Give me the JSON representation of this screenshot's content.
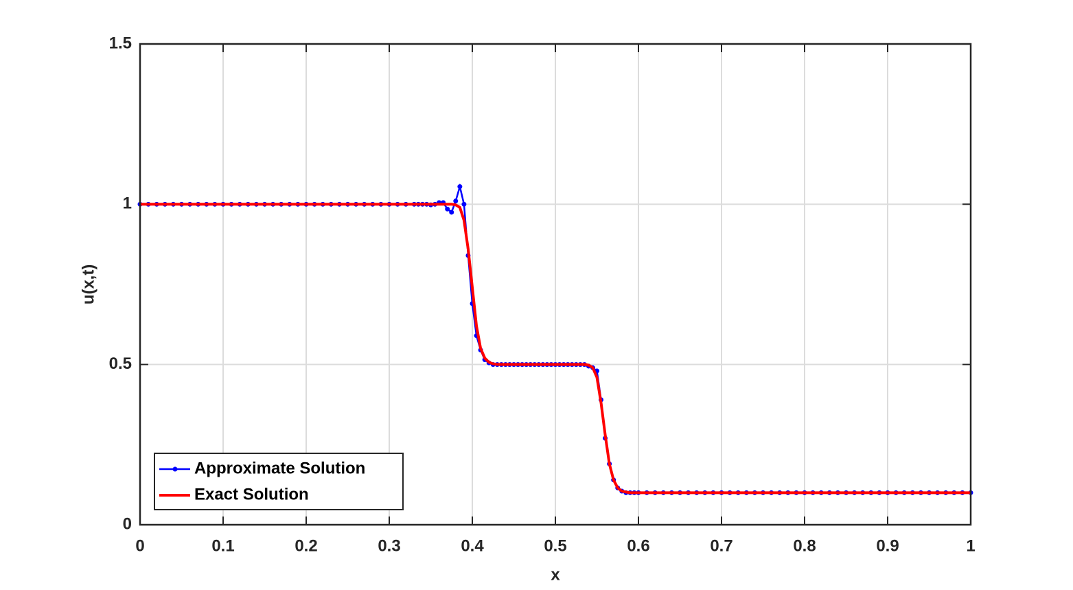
{
  "chart_data": {
    "type": "line",
    "x_label": "x",
    "y_label": "u(x,t)",
    "x": [
      0,
      0.01,
      0.02,
      0.03,
      0.04,
      0.05,
      0.06,
      0.07,
      0.08,
      0.09,
      0.1,
      0.11,
      0.12,
      0.13,
      0.14,
      0.15,
      0.16,
      0.17,
      0.18,
      0.19,
      0.2,
      0.21,
      0.22,
      0.23,
      0.24,
      0.25,
      0.26,
      0.27,
      0.28,
      0.29,
      0.3,
      0.31,
      0.32,
      0.33,
      0.335,
      0.34,
      0.345,
      0.35,
      0.355,
      0.36,
      0.365,
      0.37,
      0.375,
      0.38,
      0.385,
      0.39,
      0.395,
      0.4,
      0.405,
      0.41,
      0.415,
      0.42,
      0.425,
      0.43,
      0.435,
      0.44,
      0.445,
      0.45,
      0.455,
      0.46,
      0.465,
      0.47,
      0.475,
      0.48,
      0.485,
      0.49,
      0.495,
      0.5,
      0.505,
      0.51,
      0.515,
      0.52,
      0.525,
      0.53,
      0.535,
      0.54,
      0.545,
      0.55,
      0.555,
      0.56,
      0.565,
      0.57,
      0.575,
      0.58,
      0.585,
      0.59,
      0.595,
      0.6,
      0.61,
      0.62,
      0.63,
      0.64,
      0.65,
      0.66,
      0.67,
      0.68,
      0.69,
      0.7,
      0.71,
      0.72,
      0.73,
      0.74,
      0.75,
      0.76,
      0.77,
      0.78,
      0.79,
      0.8,
      0.81,
      0.82,
      0.83,
      0.84,
      0.85,
      0.86,
      0.87,
      0.88,
      0.89,
      0.9,
      0.91,
      0.92,
      0.93,
      0.94,
      0.95,
      0.96,
      0.97,
      0.98,
      0.99,
      1
    ],
    "series": [
      {
        "name": "Approximate Solution",
        "color": "#0000ff",
        "marker": true,
        "values": [
          1,
          1,
          1,
          1,
          1,
          1,
          1,
          1,
          1,
          1,
          1,
          1,
          1,
          1,
          1,
          1,
          1,
          1,
          1,
          1,
          1,
          1,
          1,
          1,
          1,
          1,
          1,
          1,
          1,
          1,
          1,
          1,
          1,
          1,
          1,
          1,
          1,
          0.998,
          1,
          1.005,
          1.005,
          0.985,
          0.975,
          1.01,
          1.055,
          1,
          0.84,
          0.69,
          0.59,
          0.545,
          0.515,
          0.505,
          0.5,
          0.5,
          0.5,
          0.5,
          0.5,
          0.5,
          0.5,
          0.5,
          0.5,
          0.5,
          0.5,
          0.5,
          0.5,
          0.5,
          0.5,
          0.5,
          0.5,
          0.5,
          0.5,
          0.5,
          0.5,
          0.5,
          0.5,
          0.495,
          0.49,
          0.48,
          0.39,
          0.27,
          0.19,
          0.14,
          0.115,
          0.105,
          0.1,
          0.1,
          0.1,
          0.1,
          0.1,
          0.1,
          0.1,
          0.1,
          0.1,
          0.1,
          0.1,
          0.1,
          0.1,
          0.1,
          0.1,
          0.1,
          0.1,
          0.1,
          0.1,
          0.1,
          0.1,
          0.1,
          0.1,
          0.1,
          0.1,
          0.1,
          0.1,
          0.1,
          0.1,
          0.1,
          0.1,
          0.1,
          0.1,
          0.1,
          0.1,
          0.1,
          0.1,
          0.1,
          0.1,
          0.1,
          0.1,
          0.1,
          0.1,
          0.1
        ]
      },
      {
        "name": "Exact Solution",
        "color": "#ff0000",
        "marker": false,
        "values": [
          1,
          1,
          1,
          1,
          1,
          1,
          1,
          1,
          1,
          1,
          1,
          1,
          1,
          1,
          1,
          1,
          1,
          1,
          1,
          1,
          1,
          1,
          1,
          1,
          1,
          1,
          1,
          1,
          1,
          1,
          1,
          1,
          1,
          1,
          1,
          1,
          1,
          1,
          1,
          1,
          1,
          1,
          1,
          0.998,
          0.99,
          0.95,
          0.86,
          0.74,
          0.62,
          0.55,
          0.52,
          0.507,
          0.502,
          0.5,
          0.5,
          0.5,
          0.5,
          0.5,
          0.5,
          0.5,
          0.5,
          0.5,
          0.5,
          0.5,
          0.5,
          0.5,
          0.5,
          0.5,
          0.5,
          0.5,
          0.5,
          0.5,
          0.5,
          0.5,
          0.5,
          0.498,
          0.49,
          0.46,
          0.38,
          0.28,
          0.19,
          0.14,
          0.115,
          0.105,
          0.102,
          0.1,
          0.1,
          0.1,
          0.1,
          0.1,
          0.1,
          0.1,
          0.1,
          0.1,
          0.1,
          0.1,
          0.1,
          0.1,
          0.1,
          0.1,
          0.1,
          0.1,
          0.1,
          0.1,
          0.1,
          0.1,
          0.1,
          0.1,
          0.1,
          0.1,
          0.1,
          0.1,
          0.1,
          0.1,
          0.1,
          0.1,
          0.1,
          0.1,
          0.1,
          0.1,
          0.1,
          0.1,
          0.1,
          0.1,
          0.1,
          0.1,
          0.1,
          0.1
        ]
      }
    ],
    "xlim": [
      0,
      1
    ],
    "ylim": [
      0,
      1.5
    ],
    "xticks": [
      0,
      0.1,
      0.2,
      0.3,
      0.4,
      0.5,
      0.6,
      0.7,
      0.8,
      0.9,
      1
    ],
    "yticks": [
      0,
      0.5,
      1,
      1.5
    ],
    "grid": true,
    "legend": "lower left"
  }
}
